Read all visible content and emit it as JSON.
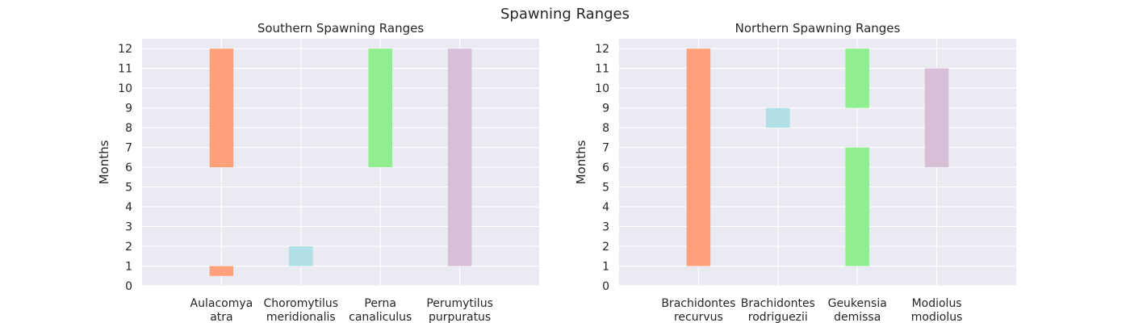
{
  "figure": {
    "title": "Spawning Ranges"
  },
  "colors": {
    "axes_bg": "#EAEAF2",
    "grid": "#FFFFFF",
    "text": "#262626"
  },
  "chart_data": [
    {
      "type": "bar",
      "title": "Southern Spawning Ranges",
      "xlabel": "",
      "ylabel": "Months",
      "ylim": [
        0,
        12.5
      ],
      "yticks": [
        0,
        1,
        2,
        3,
        4,
        5,
        6,
        7,
        8,
        9,
        10,
        11,
        12
      ],
      "categories": [
        {
          "lines": [
            "Aulacomya",
            "atra"
          ],
          "color": "#FFA07A",
          "ranges": [
            [
              0.5,
              1
            ],
            [
              6,
              12
            ]
          ]
        },
        {
          "lines": [
            "Choromytilus",
            "meridionalis"
          ],
          "color": "#B0E0E6",
          "ranges": [
            [
              1,
              2
            ]
          ]
        },
        {
          "lines": [
            "Perna",
            "canaliculus"
          ],
          "color": "#90EE90",
          "ranges": [
            [
              6,
              12
            ]
          ]
        },
        {
          "lines": [
            "Perumytilus",
            "purpuratus"
          ],
          "color": "#D8BFD8",
          "ranges": [
            [
              1,
              12
            ]
          ]
        }
      ],
      "grid": true
    },
    {
      "type": "bar",
      "title": "Northern Spawning Ranges",
      "xlabel": "",
      "ylabel": "Months",
      "ylim": [
        0,
        12.5
      ],
      "yticks": [
        0,
        1,
        2,
        3,
        4,
        5,
        6,
        7,
        8,
        9,
        10,
        11,
        12
      ],
      "categories": [
        {
          "lines": [
            "Brachidontes",
            "recurvus"
          ],
          "color": "#FFA07A",
          "ranges": [
            [
              1,
              12
            ]
          ]
        },
        {
          "lines": [
            "Brachidontes",
            "rodriguezii"
          ],
          "color": "#B0E0E6",
          "ranges": [
            [
              8,
              9
            ]
          ]
        },
        {
          "lines": [
            "Geukensia",
            "demissa"
          ],
          "color": "#90EE90",
          "ranges": [
            [
              1,
              7
            ],
            [
              9,
              12
            ]
          ]
        },
        {
          "lines": [
            "Modiolus",
            "modiolus"
          ],
          "color": "#D8BFD8",
          "ranges": [
            [
              6,
              11
            ]
          ]
        }
      ],
      "grid": true
    }
  ]
}
